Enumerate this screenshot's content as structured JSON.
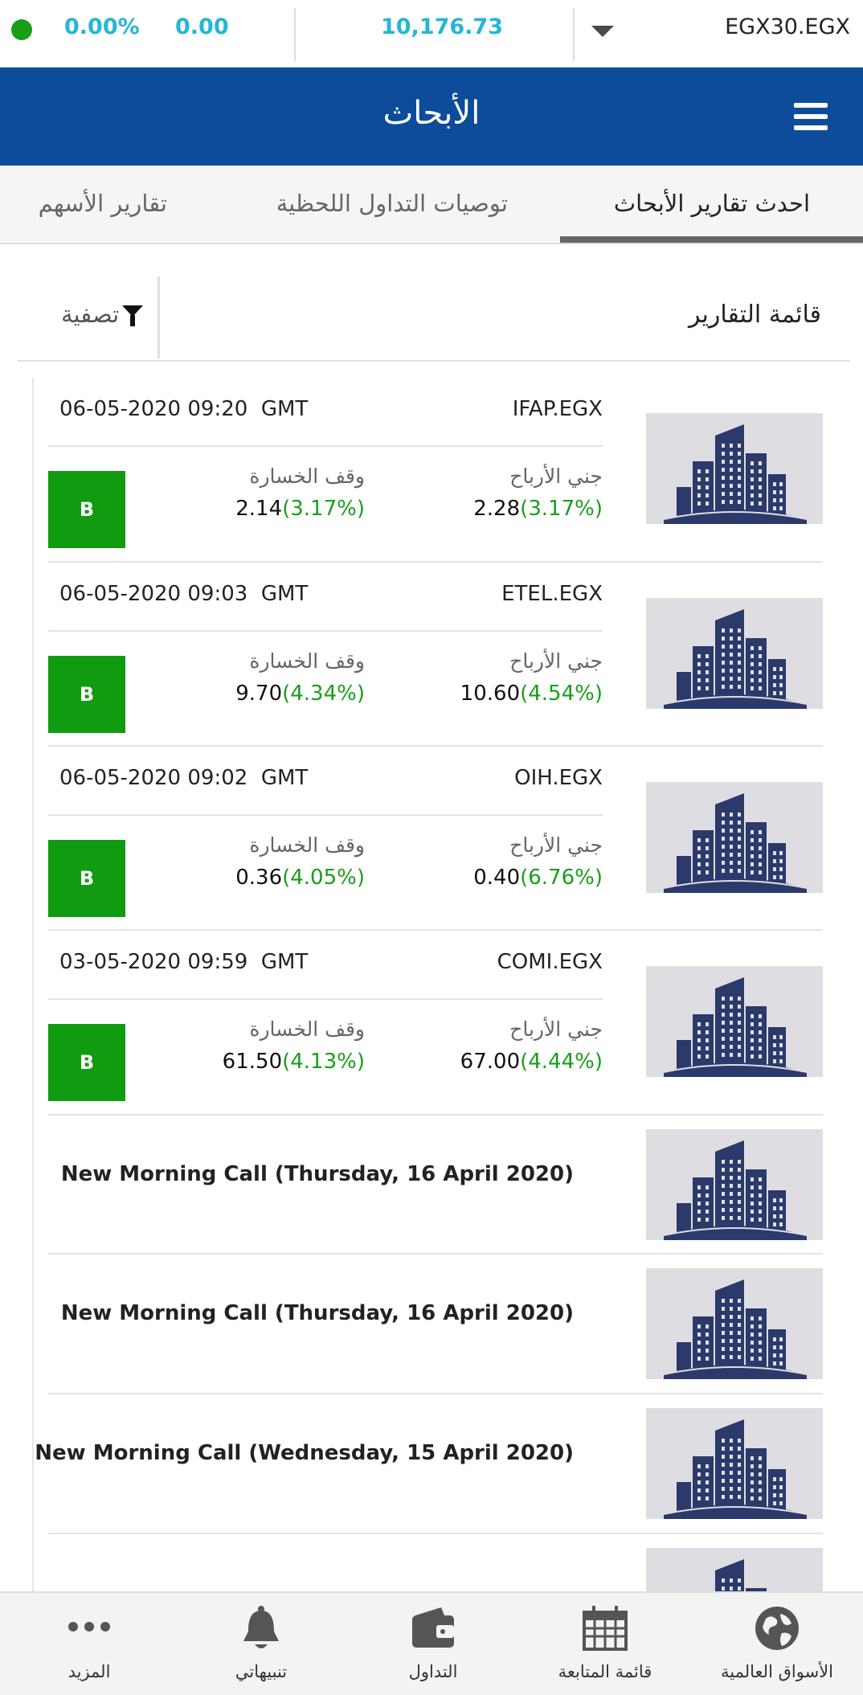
{
  "ticker": {
    "status_color": "#1a9e1a",
    "change_percent": "0.00%",
    "change_value": "0.00",
    "index_value": "10,176.73",
    "symbol": "EGX30.EGX"
  },
  "header": {
    "title": "الأبحاث"
  },
  "tabs": [
    {
      "label": "احدث تقارير الأبحاث",
      "active": true
    },
    {
      "label": "توصيات التداول اللحظية",
      "active": false
    },
    {
      "label": "تقارير الأسهم",
      "active": false
    }
  ],
  "list": {
    "title": "قائمة التقارير",
    "filter_label": "تصفية"
  },
  "labels": {
    "take_profit": "جني الأرباح",
    "stop_loss": "وقف الخسارة",
    "timezone": "GMT"
  },
  "reports": [
    {
      "symbol": "IFAP.EGX",
      "datetime": "06-05-2020 09:20",
      "profit_value": "2.28",
      "profit_pct": "(3.17%)",
      "stop_value": "2.14",
      "stop_pct": "(3.17%)",
      "signal": "B"
    },
    {
      "symbol": "ETEL.EGX",
      "datetime": "06-05-2020 09:03",
      "profit_value": "10.60",
      "profit_pct": "(4.54%)",
      "stop_value": "9.70",
      "stop_pct": "(4.34%)",
      "signal": "B"
    },
    {
      "symbol": "OIH.EGX",
      "datetime": "06-05-2020 09:02",
      "profit_value": "0.40",
      "profit_pct": "(6.76%)",
      "stop_value": "0.36",
      "stop_pct": "(4.05%)",
      "signal": "B"
    },
    {
      "symbol": "COMI.EGX",
      "datetime": "03-05-2020 09:59",
      "profit_value": "67.00",
      "profit_pct": "(4.44%)",
      "stop_value": "61.50",
      "stop_pct": "(4.13%)",
      "signal": "B"
    }
  ],
  "morning_calls": [
    {
      "title": "New Morning Call (Thursday, 16 April 2020)"
    },
    {
      "title": "New Morning Call (Thursday, 16 April 2020)"
    },
    {
      "title": "New Morning Call (Wednesday, 15 April 2020)"
    }
  ],
  "colors": {
    "header_bg": "#0d4c9a",
    "accent_cyan": "#25b6d6",
    "signal_green": "#109b10",
    "pct_green": "#1a9e1a",
    "thumb_bg": "#dedee2",
    "building": "#2b3a6b"
  },
  "bottom_nav": [
    {
      "label": "الأسواق العالمية",
      "icon": "globe-icon"
    },
    {
      "label": "قائمة المتابعة",
      "icon": "calendar-grid-icon"
    },
    {
      "label": "التداول",
      "icon": "wallet-icon"
    },
    {
      "label": "تنبيهاتي",
      "icon": "bell-icon"
    },
    {
      "label": "المزيد",
      "icon": "more-dots-icon"
    }
  ]
}
